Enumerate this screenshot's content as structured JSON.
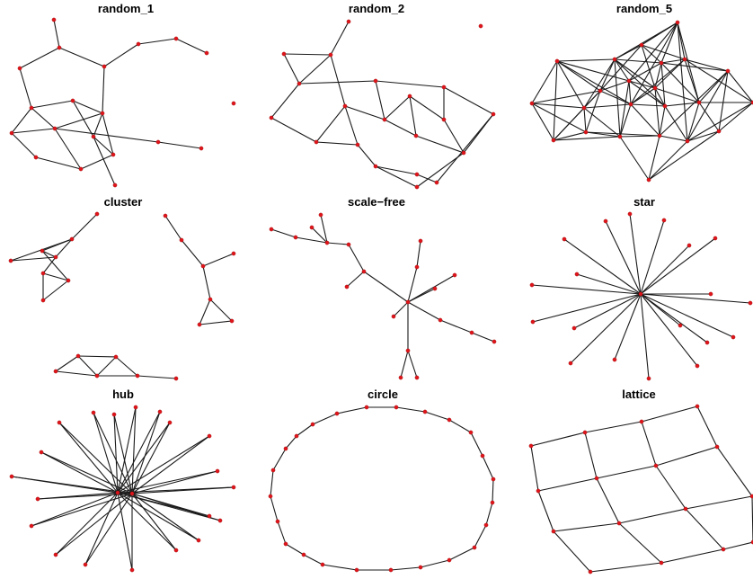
{
  "figure": {
    "panels": [
      {
        "id": "random_1",
        "title": "random_1"
      },
      {
        "id": "random_2",
        "title": "random_2"
      },
      {
        "id": "random_5",
        "title": "random_5"
      },
      {
        "id": "cluster",
        "title": "cluster"
      },
      {
        "id": "scale-free",
        "title": "scale−free"
      },
      {
        "id": "star",
        "title": "star"
      },
      {
        "id": "hub",
        "title": "hub"
      },
      {
        "id": "circle",
        "title": "circle"
      },
      {
        "id": "lattice",
        "title": "lattice"
      }
    ]
  },
  "colors": {
    "node": "#e0151b",
    "edge": "#1a1a1a",
    "background": "#ffffff"
  }
}
